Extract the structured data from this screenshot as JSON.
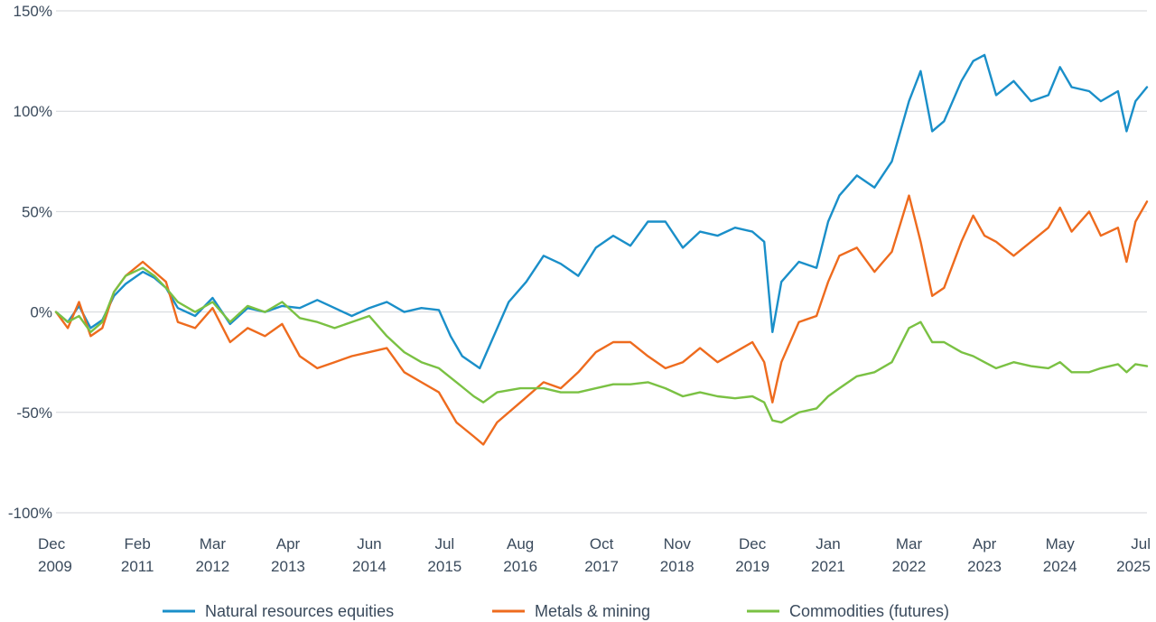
{
  "chart_data": {
    "type": "line",
    "title": "",
    "xlabel": "",
    "ylabel": "",
    "ylim": [
      -100,
      150
    ],
    "y_ticks": [
      {
        "value": 150,
        "label": "150%"
      },
      {
        "value": 100,
        "label": "100%"
      },
      {
        "value": 50,
        "label": "50%"
      },
      {
        "value": 0,
        "label": "0%"
      },
      {
        "value": -50,
        "label": "-50%"
      },
      {
        "value": -100,
        "label": "-100%"
      }
    ],
    "x_range": [
      "2009-12-01",
      "2025-07-31"
    ],
    "x_ticks": [
      {
        "date": "2009-12-01",
        "month": "Dec",
        "year": "2009"
      },
      {
        "date": "2011-02-01",
        "month": "Feb",
        "year": "2011"
      },
      {
        "date": "2012-03-01",
        "month": "Mar",
        "year": "2012"
      },
      {
        "date": "2013-04-01",
        "month": "Apr",
        "year": "2013"
      },
      {
        "date": "2014-06-01",
        "month": "Jun",
        "year": "2014"
      },
      {
        "date": "2015-07-01",
        "month": "Jul",
        "year": "2015"
      },
      {
        "date": "2016-08-01",
        "month": "Aug",
        "year": "2016"
      },
      {
        "date": "2017-10-01",
        "month": "Oct",
        "year": "2017"
      },
      {
        "date": "2018-11-01",
        "month": "Nov",
        "year": "2018"
      },
      {
        "date": "2019-12-01",
        "month": "Dec",
        "year": "2019"
      },
      {
        "date": "2021-01-01",
        "month": "Jan",
        "year": "2021"
      },
      {
        "date": "2022-03-01",
        "month": "Mar",
        "year": "2022"
      },
      {
        "date": "2023-04-01",
        "month": "Apr",
        "year": "2023"
      },
      {
        "date": "2024-05-01",
        "month": "May",
        "year": "2024"
      },
      {
        "date": "2025-07-01",
        "month": "Jul",
        "year": "2025"
      }
    ],
    "grid": "horizontal",
    "legend": "bottom",
    "series": [
      {
        "name": "Natural resources equities",
        "color": "#1a8fc9",
        "points": [
          [
            "2009-12-01",
            0
          ],
          [
            "2010-02-01",
            -5
          ],
          [
            "2010-04-01",
            3
          ],
          [
            "2010-06-01",
            -8
          ],
          [
            "2010-08-01",
            -4
          ],
          [
            "2010-10-01",
            8
          ],
          [
            "2010-12-01",
            14
          ],
          [
            "2011-03-01",
            20
          ],
          [
            "2011-05-01",
            17
          ],
          [
            "2011-07-01",
            12
          ],
          [
            "2011-09-01",
            2
          ],
          [
            "2011-12-01",
            -2
          ],
          [
            "2012-03-01",
            7
          ],
          [
            "2012-06-01",
            -6
          ],
          [
            "2012-09-01",
            2
          ],
          [
            "2012-12-01",
            0
          ],
          [
            "2013-03-01",
            3
          ],
          [
            "2013-06-01",
            2
          ],
          [
            "2013-09-01",
            6
          ],
          [
            "2013-12-01",
            2
          ],
          [
            "2014-03-01",
            -2
          ],
          [
            "2014-06-01",
            2
          ],
          [
            "2014-09-01",
            5
          ],
          [
            "2014-12-01",
            0
          ],
          [
            "2015-03-01",
            2
          ],
          [
            "2015-06-01",
            1
          ],
          [
            "2015-08-01",
            -12
          ],
          [
            "2015-10-01",
            -22
          ],
          [
            "2016-01-01",
            -28
          ],
          [
            "2016-03-01",
            -15
          ],
          [
            "2016-06-01",
            5
          ],
          [
            "2016-09-01",
            15
          ],
          [
            "2016-12-01",
            28
          ],
          [
            "2017-03-01",
            24
          ],
          [
            "2017-06-01",
            18
          ],
          [
            "2017-09-01",
            32
          ],
          [
            "2017-12-01",
            38
          ],
          [
            "2018-03-01",
            33
          ],
          [
            "2018-06-01",
            45
          ],
          [
            "2018-09-01",
            45
          ],
          [
            "2018-12-01",
            32
          ],
          [
            "2019-03-01",
            40
          ],
          [
            "2019-06-01",
            38
          ],
          [
            "2019-09-01",
            42
          ],
          [
            "2019-12-01",
            40
          ],
          [
            "2020-02-01",
            35
          ],
          [
            "2020-03-15",
            -10
          ],
          [
            "2020-05-01",
            15
          ],
          [
            "2020-08-01",
            25
          ],
          [
            "2020-11-01",
            22
          ],
          [
            "2021-01-01",
            45
          ],
          [
            "2021-03-01",
            58
          ],
          [
            "2021-06-01",
            68
          ],
          [
            "2021-09-01",
            62
          ],
          [
            "2021-12-01",
            75
          ],
          [
            "2022-03-01",
            105
          ],
          [
            "2022-05-01",
            120
          ],
          [
            "2022-07-01",
            90
          ],
          [
            "2022-09-01",
            95
          ],
          [
            "2022-12-01",
            115
          ],
          [
            "2023-02-01",
            125
          ],
          [
            "2023-04-01",
            128
          ],
          [
            "2023-06-01",
            108
          ],
          [
            "2023-09-01",
            115
          ],
          [
            "2023-12-01",
            105
          ],
          [
            "2024-03-01",
            108
          ],
          [
            "2024-05-01",
            122
          ],
          [
            "2024-07-01",
            112
          ],
          [
            "2024-10-01",
            110
          ],
          [
            "2024-12-01",
            105
          ],
          [
            "2025-03-01",
            110
          ],
          [
            "2025-04-15",
            90
          ],
          [
            "2025-06-01",
            105
          ],
          [
            "2025-07-31",
            112
          ]
        ]
      },
      {
        "name": "Metals & mining",
        "color": "#ee6b1e",
        "points": [
          [
            "2009-12-01",
            0
          ],
          [
            "2010-02-01",
            -8
          ],
          [
            "2010-04-01",
            5
          ],
          [
            "2010-06-01",
            -12
          ],
          [
            "2010-08-01",
            -8
          ],
          [
            "2010-10-01",
            10
          ],
          [
            "2010-12-01",
            18
          ],
          [
            "2011-03-01",
            25
          ],
          [
            "2011-05-01",
            20
          ],
          [
            "2011-07-01",
            15
          ],
          [
            "2011-09-01",
            -5
          ],
          [
            "2011-12-01",
            -8
          ],
          [
            "2012-03-01",
            2
          ],
          [
            "2012-06-01",
            -15
          ],
          [
            "2012-09-01",
            -8
          ],
          [
            "2012-12-01",
            -12
          ],
          [
            "2013-03-01",
            -6
          ],
          [
            "2013-06-01",
            -22
          ],
          [
            "2013-09-01",
            -28
          ],
          [
            "2013-12-01",
            -25
          ],
          [
            "2014-03-01",
            -22
          ],
          [
            "2014-06-01",
            -20
          ],
          [
            "2014-09-01",
            -18
          ],
          [
            "2014-12-01",
            -30
          ],
          [
            "2015-03-01",
            -35
          ],
          [
            "2015-06-01",
            -40
          ],
          [
            "2015-09-01",
            -55
          ],
          [
            "2015-12-01",
            -62
          ],
          [
            "2016-01-20",
            -66
          ],
          [
            "2016-04-01",
            -55
          ],
          [
            "2016-08-01",
            -45
          ],
          [
            "2016-12-01",
            -35
          ],
          [
            "2017-03-01",
            -38
          ],
          [
            "2017-06-01",
            -30
          ],
          [
            "2017-09-01",
            -20
          ],
          [
            "2017-12-01",
            -15
          ],
          [
            "2018-03-01",
            -15
          ],
          [
            "2018-06-01",
            -22
          ],
          [
            "2018-09-01",
            -28
          ],
          [
            "2018-12-01",
            -25
          ],
          [
            "2019-03-01",
            -18
          ],
          [
            "2019-06-01",
            -25
          ],
          [
            "2019-09-01",
            -20
          ],
          [
            "2019-12-01",
            -15
          ],
          [
            "2020-02-01",
            -25
          ],
          [
            "2020-03-15",
            -45
          ],
          [
            "2020-05-01",
            -25
          ],
          [
            "2020-08-01",
            -5
          ],
          [
            "2020-11-01",
            -2
          ],
          [
            "2021-01-01",
            15
          ],
          [
            "2021-03-01",
            28
          ],
          [
            "2021-06-01",
            32
          ],
          [
            "2021-09-01",
            20
          ],
          [
            "2021-12-01",
            30
          ],
          [
            "2022-03-01",
            58
          ],
          [
            "2022-05-01",
            35
          ],
          [
            "2022-07-01",
            8
          ],
          [
            "2022-09-01",
            12
          ],
          [
            "2022-12-01",
            35
          ],
          [
            "2023-02-01",
            48
          ],
          [
            "2023-04-01",
            38
          ],
          [
            "2023-06-01",
            35
          ],
          [
            "2023-09-01",
            28
          ],
          [
            "2023-12-01",
            35
          ],
          [
            "2024-03-01",
            42
          ],
          [
            "2024-05-01",
            52
          ],
          [
            "2024-07-01",
            40
          ],
          [
            "2024-10-01",
            50
          ],
          [
            "2024-12-01",
            38
          ],
          [
            "2025-03-01",
            42
          ],
          [
            "2025-04-15",
            25
          ],
          [
            "2025-06-01",
            45
          ],
          [
            "2025-07-31",
            55
          ]
        ]
      },
      {
        "name": "Commodities (futures)",
        "color": "#7ac143",
        "points": [
          [
            "2009-12-01",
            0
          ],
          [
            "2010-02-01",
            -5
          ],
          [
            "2010-04-01",
            -2
          ],
          [
            "2010-06-01",
            -10
          ],
          [
            "2010-08-01",
            -5
          ],
          [
            "2010-10-01",
            10
          ],
          [
            "2010-12-01",
            18
          ],
          [
            "2011-03-01",
            22
          ],
          [
            "2011-05-01",
            18
          ],
          [
            "2011-07-01",
            12
          ],
          [
            "2011-09-01",
            5
          ],
          [
            "2011-12-01",
            0
          ],
          [
            "2012-03-01",
            5
          ],
          [
            "2012-06-01",
            -5
          ],
          [
            "2012-09-01",
            3
          ],
          [
            "2012-12-01",
            0
          ],
          [
            "2013-03-01",
            5
          ],
          [
            "2013-06-01",
            -3
          ],
          [
            "2013-09-01",
            -5
          ],
          [
            "2013-12-01",
            -8
          ],
          [
            "2014-03-01",
            -5
          ],
          [
            "2014-06-01",
            -2
          ],
          [
            "2014-09-01",
            -12
          ],
          [
            "2014-12-01",
            -20
          ],
          [
            "2015-03-01",
            -25
          ],
          [
            "2015-06-01",
            -28
          ],
          [
            "2015-09-01",
            -35
          ],
          [
            "2015-12-01",
            -42
          ],
          [
            "2016-01-20",
            -45
          ],
          [
            "2016-04-01",
            -40
          ],
          [
            "2016-08-01",
            -38
          ],
          [
            "2016-12-01",
            -38
          ],
          [
            "2017-03-01",
            -40
          ],
          [
            "2017-06-01",
            -40
          ],
          [
            "2017-09-01",
            -38
          ],
          [
            "2017-12-01",
            -36
          ],
          [
            "2018-03-01",
            -36
          ],
          [
            "2018-06-01",
            -35
          ],
          [
            "2018-09-01",
            -38
          ],
          [
            "2018-12-01",
            -42
          ],
          [
            "2019-03-01",
            -40
          ],
          [
            "2019-06-01",
            -42
          ],
          [
            "2019-09-01",
            -43
          ],
          [
            "2019-12-01",
            -42
          ],
          [
            "2020-02-01",
            -45
          ],
          [
            "2020-03-15",
            -54
          ],
          [
            "2020-05-01",
            -55
          ],
          [
            "2020-08-01",
            -50
          ],
          [
            "2020-11-01",
            -48
          ],
          [
            "2021-01-01",
            -42
          ],
          [
            "2021-03-01",
            -38
          ],
          [
            "2021-06-01",
            -32
          ],
          [
            "2021-09-01",
            -30
          ],
          [
            "2021-12-01",
            -25
          ],
          [
            "2022-03-01",
            -8
          ],
          [
            "2022-05-01",
            -5
          ],
          [
            "2022-07-01",
            -15
          ],
          [
            "2022-09-01",
            -15
          ],
          [
            "2022-12-01",
            -20
          ],
          [
            "2023-02-01",
            -22
          ],
          [
            "2023-04-01",
            -25
          ],
          [
            "2023-06-01",
            -28
          ],
          [
            "2023-09-01",
            -25
          ],
          [
            "2023-12-01",
            -27
          ],
          [
            "2024-03-01",
            -28
          ],
          [
            "2024-05-01",
            -25
          ],
          [
            "2024-07-01",
            -30
          ],
          [
            "2024-10-01",
            -30
          ],
          [
            "2024-12-01",
            -28
          ],
          [
            "2025-03-01",
            -26
          ],
          [
            "2025-04-15",
            -30
          ],
          [
            "2025-06-01",
            -26
          ],
          [
            "2025-07-31",
            -27
          ]
        ]
      }
    ]
  }
}
